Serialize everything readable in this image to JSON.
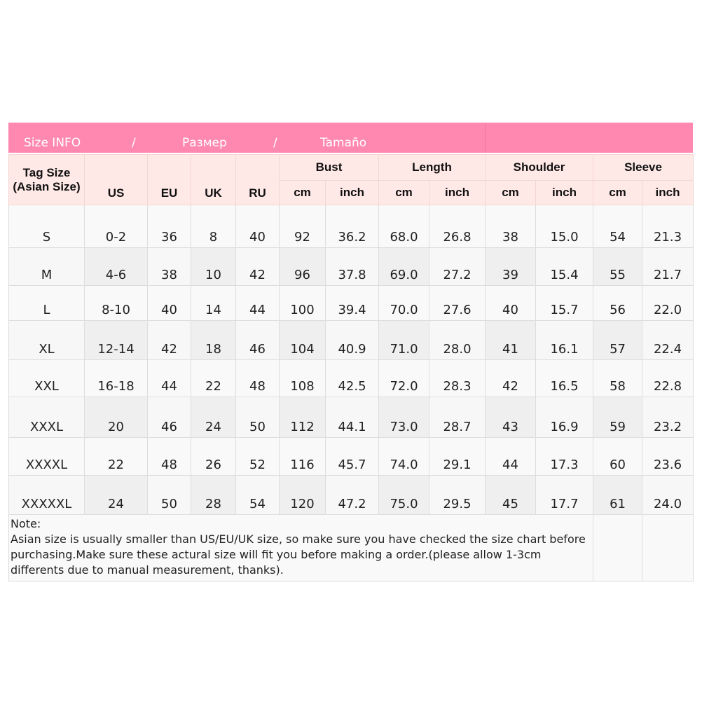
{
  "title": {
    "part1": "Size INFO",
    "sep1": "/",
    "part2": "Размер",
    "sep2": "/",
    "part3": "Tamaño"
  },
  "headers": {
    "tag_size": "Tag Size",
    "tag_size_sub": "(Asian Size)",
    "us": "US",
    "eu": "EU",
    "uk": "UK",
    "ru": "RU",
    "groups": [
      "Bust",
      "Length",
      "Shoulder",
      "Sleeve"
    ],
    "units": [
      "cm",
      "inch",
      "cm",
      "inch",
      "cm",
      "inch",
      "cm",
      "inch"
    ]
  },
  "rows": [
    [
      "S",
      "0-2",
      "36",
      "8",
      "40",
      "92",
      "36.2",
      "68.0",
      "26.8",
      "38",
      "15.0",
      "54",
      "21.3"
    ],
    [
      "M",
      "4-6",
      "38",
      "10",
      "42",
      "96",
      "37.8",
      "69.0",
      "27.2",
      "39",
      "15.4",
      "55",
      "21.7"
    ],
    [
      "L",
      "8-10",
      "40",
      "14",
      "44",
      "100",
      "39.4",
      "70.0",
      "27.6",
      "40",
      "15.7",
      "56",
      "22.0"
    ],
    [
      "XL",
      "12-14",
      "42",
      "18",
      "46",
      "104",
      "40.9",
      "71.0",
      "28.0",
      "41",
      "16.1",
      "57",
      "22.4"
    ],
    [
      "XXL",
      "16-18",
      "44",
      "22",
      "48",
      "108",
      "42.5",
      "72.0",
      "28.3",
      "42",
      "16.5",
      "58",
      "22.8"
    ],
    [
      "XXXL",
      "20",
      "46",
      "24",
      "50",
      "112",
      "44.1",
      "73.0",
      "28.7",
      "43",
      "16.9",
      "59",
      "23.2"
    ],
    [
      "XXXXL",
      "22",
      "48",
      "26",
      "52",
      "116",
      "45.7",
      "74.0",
      "29.1",
      "44",
      "17.3",
      "60",
      "23.6"
    ],
    [
      "XXXXXL",
      "24",
      "50",
      "28",
      "54",
      "120",
      "47.2",
      "75.0",
      "29.5",
      "45",
      "17.7",
      "61",
      "24.0"
    ]
  ],
  "note": {
    "label": "Note:",
    "text": "Asian size is usually smaller than US/EU/UK size, so make sure you have checked the size chart before purchasing.Make sure these actural size will fit you before making a order.(please allow 1-3cm differents due to manual measurement, thanks)."
  },
  "colors": {
    "title_bg": "#ff88b0",
    "header_bg": "#ffe9e7"
  }
}
